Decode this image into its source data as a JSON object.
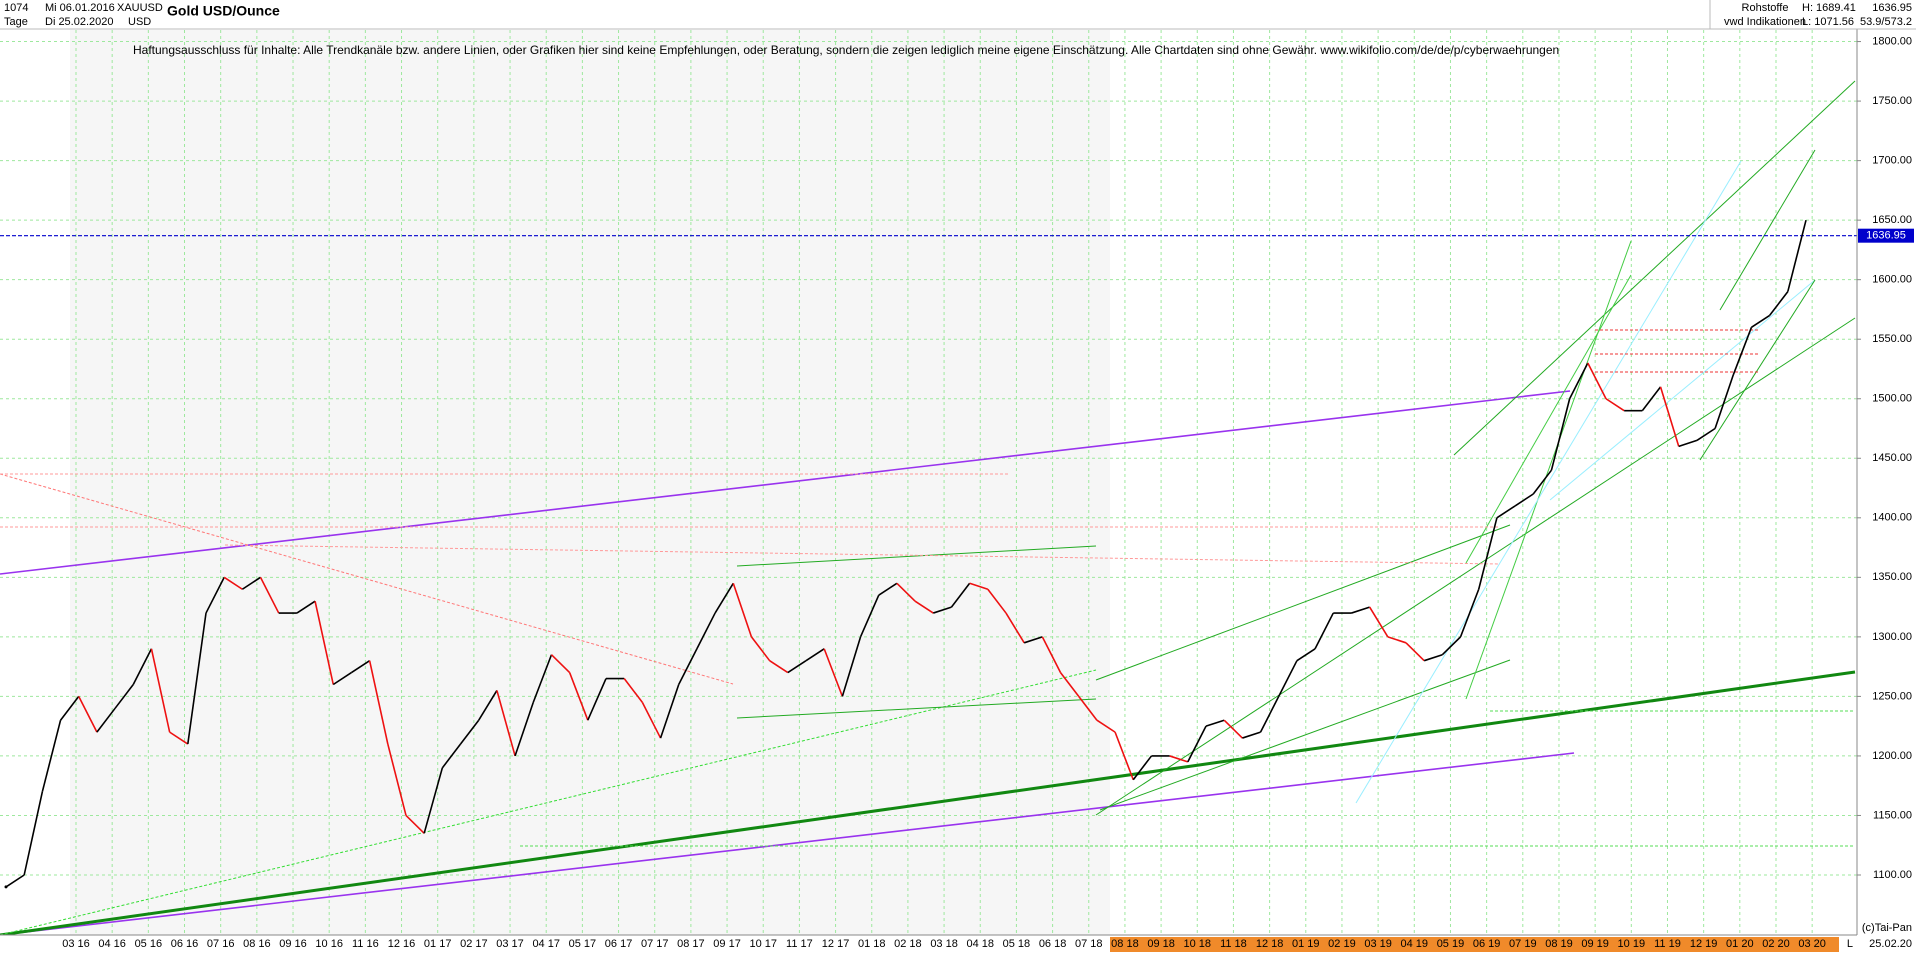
{
  "chart_data": {
    "type": "line",
    "title": "Gold USD/Ounce",
    "header": {
      "bars": "1074",
      "start_date": "Mi 06.01.2016",
      "symbol": "XAUUSD",
      "period": "Tage",
      "end_date": "Di 25.02.2020",
      "currency": "USD",
      "market": "Rohstoffe",
      "source": "vwd Indikationen",
      "high": "H: 1689.41",
      "low": "L: 1071.56",
      "last": "1636.95",
      "range": "53.9/573.2"
    },
    "disclaimer": "Haftungsausschluss für Inhalte: Alle Trendkanäle bzw. andere Linien, oder Grafiken hier sind keine Empfehlungen, oder Beratung, sondern die zeigen lediglich meine eigene Einschätzung. Alle Chartdaten sind ohne Gewähr.  www.wikifolio.com/de/de/p/cyberwaehrungen",
    "copyright": "(c)Tai-Pan",
    "last_date": "25.02.20",
    "scale_mode": "L",
    "current_price": {
      "value": 1636.95,
      "label": "1636.95",
      "color": "#0000cc"
    },
    "up_color": "#000000",
    "down_color": "#ee1111",
    "x_labels": [
      "03 16",
      "04 16",
      "05 16",
      "06 16",
      "07 16",
      "08 16",
      "09 16",
      "10 16",
      "11 16",
      "12 16",
      "01 17",
      "02 17",
      "03 17",
      "04 17",
      "05 17",
      "06 17",
      "07 17",
      "08 17",
      "09 17",
      "10 17",
      "11 17",
      "12 17",
      "01 18",
      "02 18",
      "03 18",
      "04 18",
      "05 18",
      "06 18",
      "07 18",
      "08 18",
      "09 18",
      "10 18",
      "11 18",
      "12 18",
      "01 19",
      "02 19",
      "03 19",
      "04 19",
      "05 19",
      "06 19",
      "07 19",
      "08 19",
      "09 19",
      "10 19",
      "11 19",
      "12 19",
      "01 20",
      "02 20",
      "03 20"
    ],
    "values": [
      1090,
      1100,
      1170,
      1230,
      1250,
      1220,
      1240,
      1260,
      1290,
      1220,
      1210,
      1320,
      1350,
      1340,
      1350,
      1320,
      1320,
      1330,
      1260,
      1270,
      1280,
      1210,
      1150,
      1135,
      1190,
      1210,
      1230,
      1255,
      1200,
      1245,
      1285,
      1270,
      1230,
      1265,
      1265,
      1245,
      1215,
      1260,
      1290,
      1320,
      1345,
      1300,
      1280,
      1270,
      1280,
      1290,
      1250,
      1300,
      1335,
      1345,
      1330,
      1320,
      1325,
      1345,
      1340,
      1320,
      1295,
      1300,
      1270,
      1250,
      1230,
      1220,
      1180,
      1200,
      1200,
      1195,
      1225,
      1230,
      1215,
      1220,
      1250,
      1280,
      1290,
      1320,
      1320,
      1325,
      1300,
      1295,
      1280,
      1285,
      1300,
      1340,
      1400,
      1410,
      1420,
      1440,
      1500,
      1530,
      1500,
      1490,
      1490,
      1510,
      1460,
      1465,
      1475,
      1520,
      1560,
      1570,
      1590,
      1650
    ],
    "ylim": [
      1049.6,
      1834.9
    ],
    "yticks": [
      {
        "value": 1100,
        "label": "1100.00"
      },
      {
        "value": 1150,
        "label": "1150.00"
      },
      {
        "value": 1200,
        "label": "1200.00"
      },
      {
        "value": 1250,
        "label": "1250.00"
      },
      {
        "value": 1300,
        "label": "1300.00"
      },
      {
        "value": 1350,
        "label": "1350.00"
      },
      {
        "value": 1400,
        "label": "1400.00"
      },
      {
        "value": 1450,
        "label": "1450.00"
      },
      {
        "value": 1500,
        "label": "1500.00"
      },
      {
        "value": 1550,
        "label": "1550.00"
      },
      {
        "value": 1600,
        "label": "1600.00"
      },
      {
        "value": 1650,
        "label": "1650.00"
      },
      {
        "value": 1700,
        "label": "1700.00"
      },
      {
        "value": 1750,
        "label": "1750.00"
      },
      {
        "value": 1800,
        "label": "1800.00"
      }
    ],
    "grid": true
  }
}
